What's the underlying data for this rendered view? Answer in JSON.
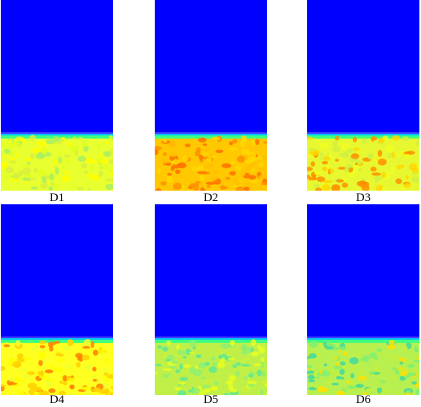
{
  "panels": [
    {
      "label": "D1",
      "palette": [
        "#ffff00",
        "#d8f040",
        "#a8f060",
        "#e0ff20"
      ],
      "base": "#e8ff30"
    },
    {
      "label": "D2",
      "palette": [
        "#ffc000",
        "#ff9000",
        "#ffd800",
        "#ff7000"
      ],
      "base": "#ffc800"
    },
    {
      "label": "D3",
      "palette": [
        "#f0ff20",
        "#d0f040",
        "#ff9000",
        "#ffd800"
      ],
      "base": "#e8f830"
    },
    {
      "label": "D4",
      "palette": [
        "#ffff00",
        "#ffd000",
        "#ff8000",
        "#f0ff30"
      ],
      "base": "#ffff20"
    },
    {
      "label": "D5",
      "palette": [
        "#c8f040",
        "#90f070",
        "#e8ff20",
        "#60e890"
      ],
      "base": "#c0f048"
    },
    {
      "label": "D6",
      "palette": [
        "#c0f040",
        "#80f070",
        "#ffe000",
        "#40d8a0"
      ],
      "base": "#b8f050"
    }
  ],
  "colors": {
    "upper": "#0000ff",
    "interface": [
      "#4040ff",
      "#00c0ff",
      "#40ff80"
    ]
  }
}
